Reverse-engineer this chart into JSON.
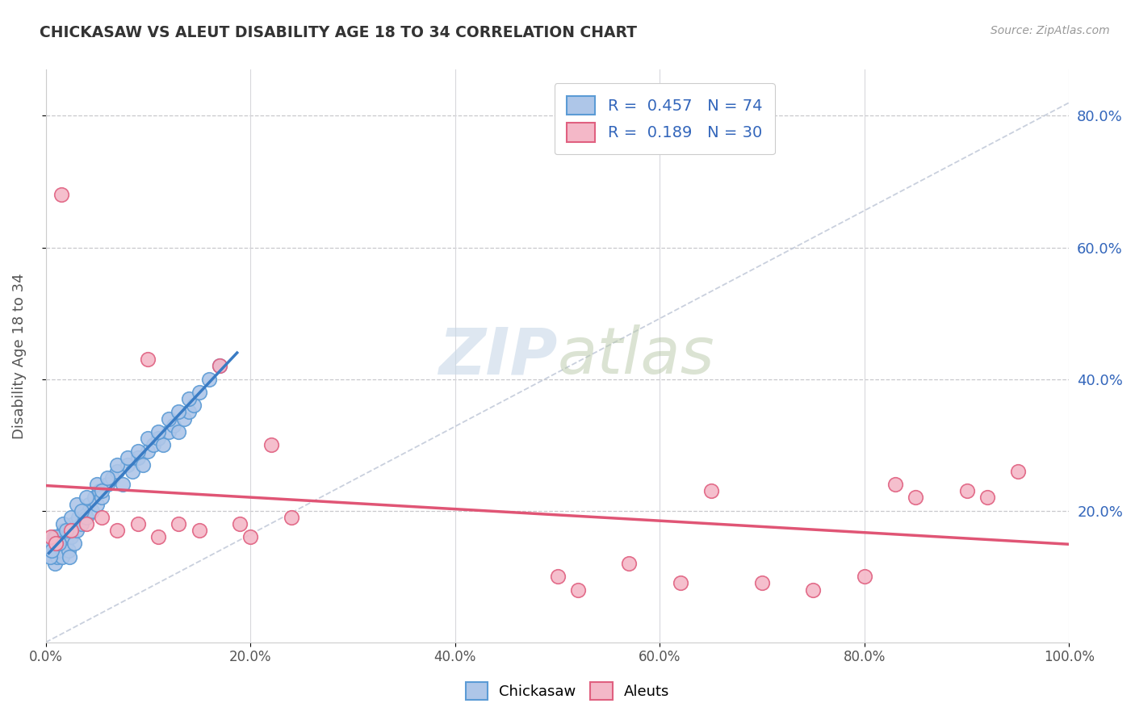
{
  "title": "CHICKASAW VS ALEUT DISABILITY AGE 18 TO 34 CORRELATION CHART",
  "source_text": "Source: ZipAtlas.com",
  "ylabel": "Disability Age 18 to 34",
  "xlim": [
    0,
    100
  ],
  "ylim": [
    0,
    87
  ],
  "xtick_labels": [
    "0.0%",
    "20.0%",
    "40.0%",
    "60.0%",
    "80.0%",
    "100.0%"
  ],
  "xtick_vals": [
    0,
    20,
    40,
    60,
    80,
    100
  ],
  "ytick_labels": [
    "20.0%",
    "40.0%",
    "60.0%",
    "80.0%"
  ],
  "ytick_vals": [
    20,
    40,
    60,
    80
  ],
  "chickasaw_color": "#aec6e8",
  "aleut_color": "#f4b8c8",
  "chickasaw_edge_color": "#5b9bd5",
  "aleut_edge_color": "#e06080",
  "chickasaw_line_color": "#3a7cc4",
  "aleut_line_color": "#e05575",
  "ref_line_color": "#c0c8d8",
  "r_chickasaw": 0.457,
  "n_chickasaw": 74,
  "r_aleut": 0.189,
  "n_aleut": 30,
  "legend_text_color": "#3366bb",
  "watermark_color": "#c8d8e8",
  "background_color": "#ffffff",
  "chickasaw_x": [
    0.3,
    0.5,
    0.7,
    0.8,
    0.9,
    1.0,
    1.1,
    1.2,
    1.3,
    1.4,
    1.5,
    1.6,
    1.8,
    2.0,
    2.1,
    2.2,
    2.3,
    2.4,
    2.5,
    2.7,
    2.8,
    3.0,
    3.2,
    3.5,
    3.8,
    4.0,
    4.2,
    4.5,
    4.8,
    5.0,
    5.2,
    5.5,
    6.0,
    6.5,
    7.0,
    7.5,
    8.0,
    8.5,
    9.0,
    9.5,
    10.0,
    10.5,
    11.0,
    11.5,
    12.0,
    12.5,
    13.0,
    13.5,
    14.0,
    14.5,
    0.4,
    0.6,
    1.0,
    1.3,
    1.7,
    2.0,
    2.5,
    3.0,
    3.5,
    4.0,
    5.0,
    5.5,
    6.0,
    7.0,
    8.0,
    9.0,
    10.0,
    11.0,
    12.0,
    13.0,
    14.0,
    15.0,
    16.0,
    17.0
  ],
  "chickasaw_y": [
    14,
    15,
    13,
    16,
    12,
    14,
    13,
    15,
    14,
    16,
    15,
    13,
    17,
    15,
    16,
    14,
    13,
    17,
    16,
    18,
    15,
    17,
    19,
    18,
    20,
    19,
    21,
    20,
    22,
    21,
    23,
    22,
    24,
    25,
    26,
    24,
    27,
    26,
    28,
    27,
    29,
    30,
    31,
    30,
    32,
    33,
    32,
    34,
    35,
    36,
    13,
    14,
    16,
    15,
    18,
    17,
    19,
    21,
    20,
    22,
    24,
    23,
    25,
    27,
    28,
    29,
    31,
    32,
    34,
    35,
    37,
    38,
    40,
    42
  ],
  "aleut_x": [
    0.5,
    1.0,
    1.5,
    2.5,
    4.0,
    5.5,
    7.0,
    9.0,
    10.0,
    11.0,
    13.0,
    15.0,
    17.0,
    19.0,
    20.0,
    22.0,
    24.0,
    50.0,
    52.0,
    57.0,
    62.0,
    65.0,
    70.0,
    75.0,
    80.0,
    83.0,
    85.0,
    90.0,
    92.0,
    95.0
  ],
  "aleut_y": [
    16,
    15,
    68,
    17,
    18,
    19,
    17,
    18,
    43,
    16,
    18,
    17,
    42,
    18,
    16,
    30,
    19,
    10,
    8,
    12,
    9,
    23,
    9,
    8,
    10,
    24,
    22,
    23,
    22,
    26
  ]
}
